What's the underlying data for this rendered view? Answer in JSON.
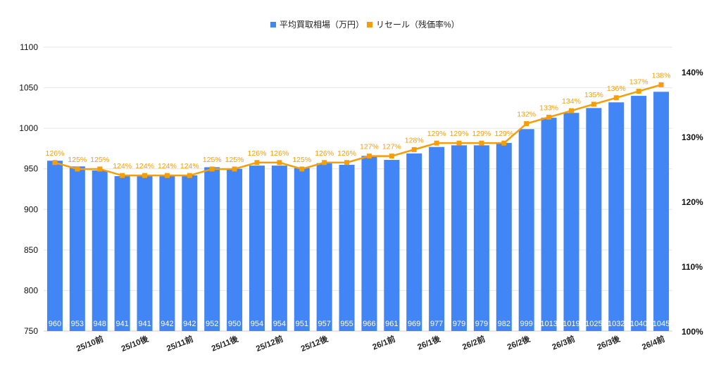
{
  "chart_data": {
    "type": "bar+line",
    "title": "",
    "categories": [
      "",
      "",
      "25/10前",
      "",
      "25/10後",
      "",
      "25/11前",
      "",
      "25/11後",
      "",
      "25/12前",
      "",
      "25/12後",
      "",
      "",
      "26/1前",
      "",
      "26/1後",
      "",
      "26/2前",
      "",
      "26/2後",
      "",
      "26/3前",
      "",
      "26/3後",
      "",
      "26/4前"
    ],
    "series": [
      {
        "name": "平均買取相場（万円）",
        "type": "bar",
        "axis": "left",
        "color": "#4285f4",
        "values": [
          960,
          953,
          948,
          941,
          941,
          942,
          942,
          952,
          950,
          954,
          954,
          951,
          957,
          955,
          966,
          961,
          969,
          977,
          979,
          979,
          982,
          999,
          1013,
          1019,
          1025,
          1032,
          1040,
          1045
        ]
      },
      {
        "name": "リセール（残価率%）",
        "type": "line",
        "axis": "right",
        "color": "#f59e0b",
        "values": [
          126,
          125,
          125,
          124,
          124,
          124,
          124,
          125,
          125,
          126,
          126,
          125,
          126,
          126,
          127,
          127,
          128,
          129,
          129,
          129,
          129,
          132,
          133,
          134,
          135,
          136,
          137,
          138
        ]
      }
    ],
    "left_axis": {
      "ylim": [
        750,
        1100
      ],
      "ticks": [
        "750",
        "800",
        "850",
        "900",
        "950",
        "1000",
        "1050",
        "1100"
      ]
    },
    "right_axis": {
      "ylim": [
        100,
        143.8
      ],
      "ticks": [
        "100%",
        "110%",
        "120%",
        "130%",
        "140%"
      ]
    },
    "legend": "top",
    "grid": true
  }
}
